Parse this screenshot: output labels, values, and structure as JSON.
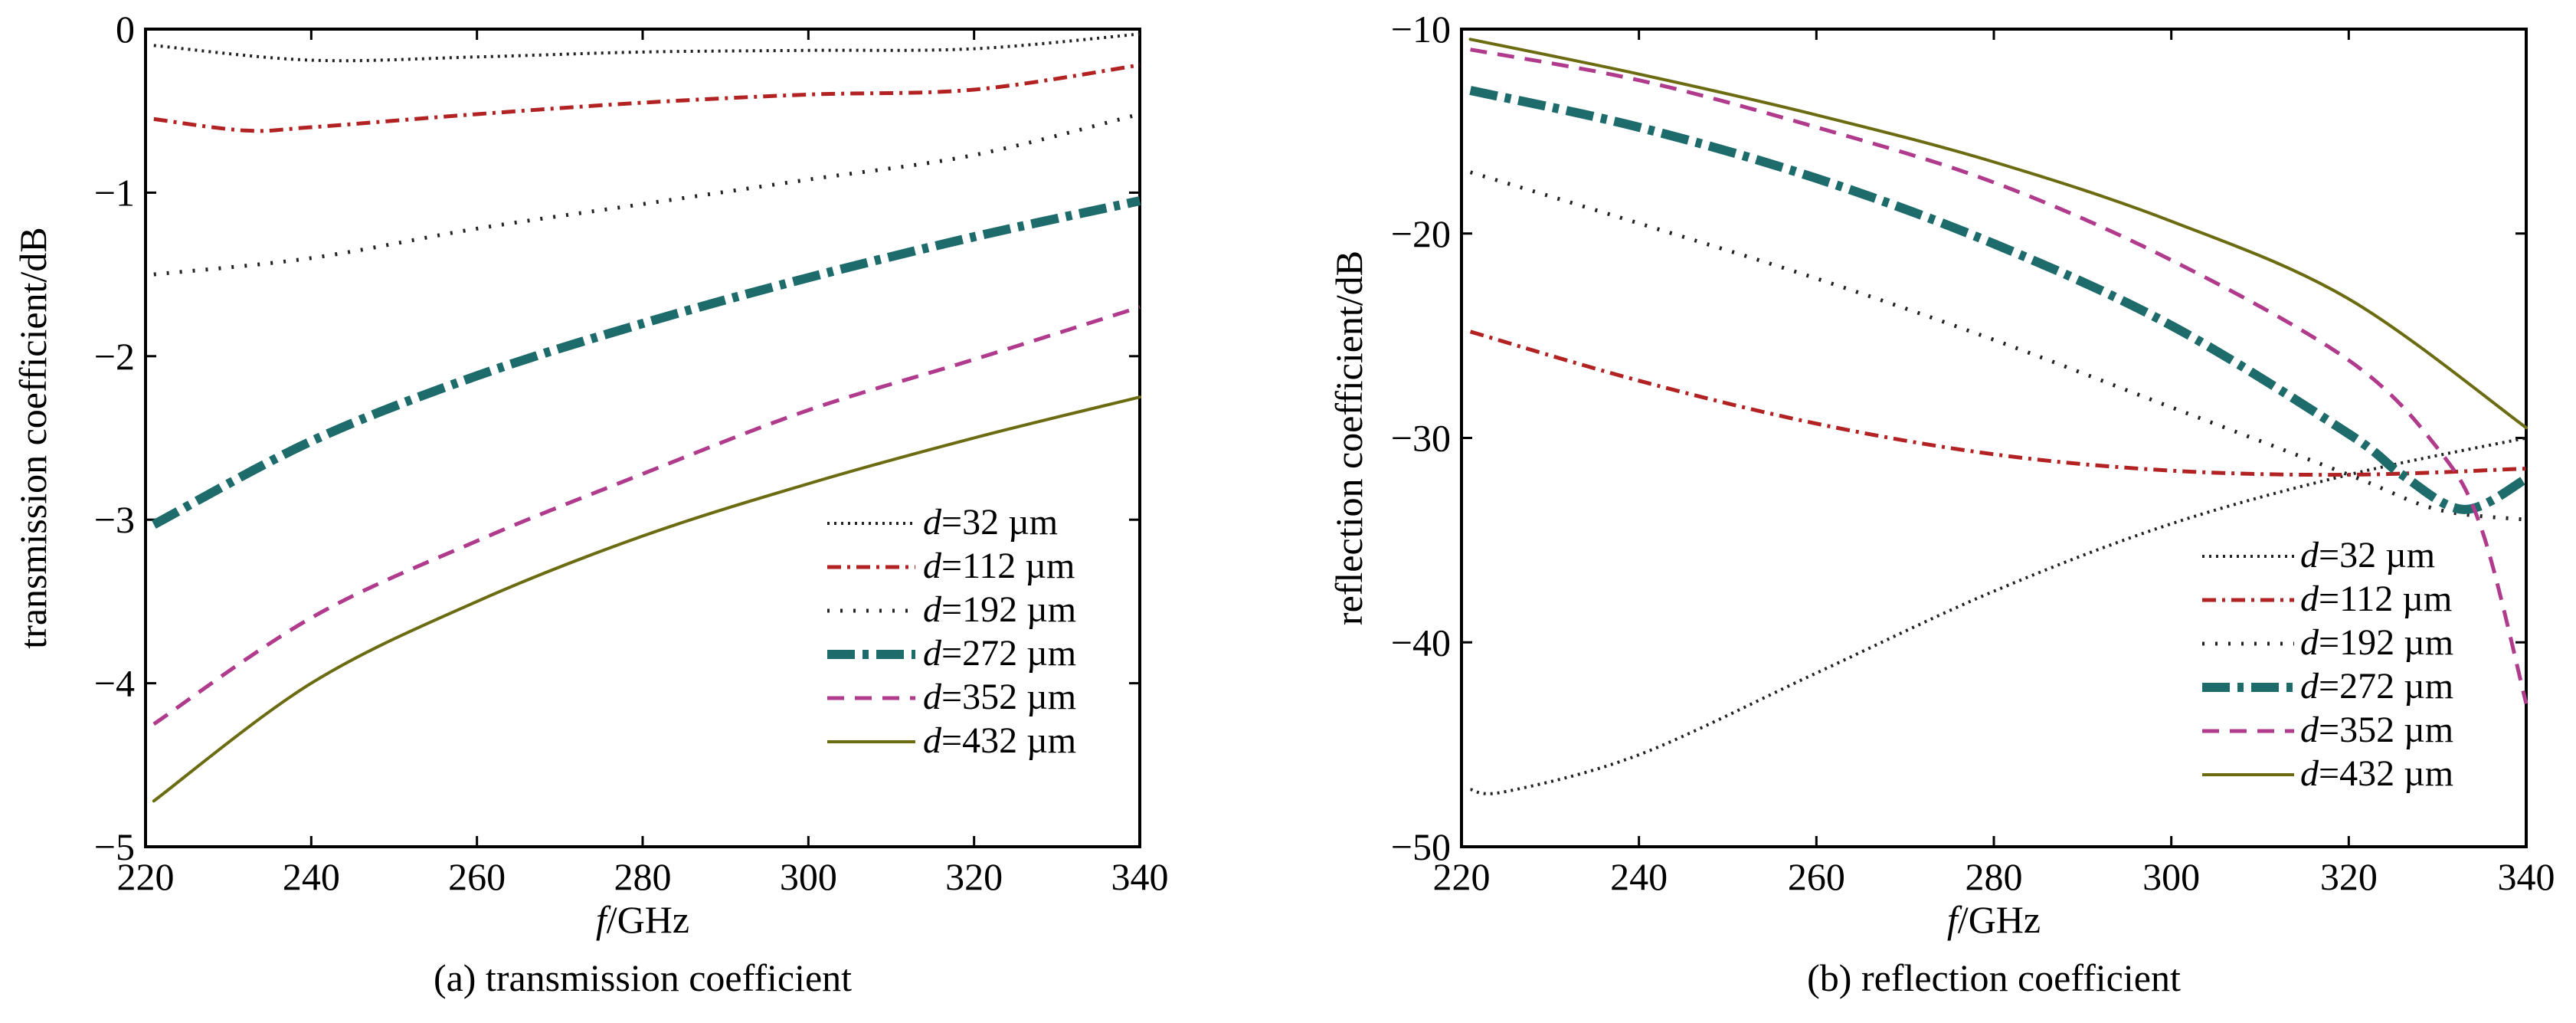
{
  "chart_data": [
    {
      "type": "line",
      "caption": "(a)  transmission coefficient",
      "xlabel_var": "f",
      "xlabel_unit": "/GHz",
      "ylabel": "transmission coefficient/dB",
      "xlim": [
        220,
        340
      ],
      "ylim": [
        -5,
        0
      ],
      "xticks": [
        220,
        240,
        260,
        280,
        300,
        320,
        340
      ],
      "yticks": [
        0,
        -1,
        -2,
        -3,
        -4,
        -5
      ],
      "ytick_labels": [
        "0",
        "−1",
        "−2",
        "−3",
        "−4",
        "−5"
      ],
      "legend_position": "bottom-right",
      "series": [
        {
          "name_var": "d",
          "name_rest": "=32 µm",
          "style": "dotted-fine",
          "color": "#222222",
          "x": [
            221,
            240,
            260,
            280,
            300,
            320,
            340
          ],
          "y": [
            -0.1,
            -0.19,
            -0.17,
            -0.14,
            -0.13,
            -0.12,
            -0.03
          ]
        },
        {
          "name_var": "d",
          "name_rest": "=112 µm",
          "style": "dashdot",
          "color": "#b22222",
          "x": [
            221,
            232,
            240,
            260,
            280,
            300,
            320,
            340
          ],
          "y": [
            -0.55,
            -0.62,
            -0.6,
            -0.52,
            -0.45,
            -0.4,
            -0.37,
            -0.22
          ]
        },
        {
          "name_var": "d",
          "name_rest": "=192 µm",
          "style": "dotted",
          "color": "#222222",
          "x": [
            221,
            240,
            260,
            280,
            300,
            320,
            340
          ],
          "y": [
            -1.5,
            -1.4,
            -1.22,
            -1.07,
            -0.92,
            -0.77,
            -0.52
          ]
        },
        {
          "name_var": "d",
          "name_rest": "=272 µm",
          "style": "dashdot-thick",
          "color": "#1e6b6b",
          "x": [
            221,
            240,
            260,
            280,
            300,
            320,
            340
          ],
          "y": [
            -3.03,
            -2.52,
            -2.12,
            -1.8,
            -1.52,
            -1.27,
            -1.05
          ]
        },
        {
          "name_var": "d",
          "name_rest": "=352 µm",
          "style": "dashed",
          "color": "#b03a8c",
          "x": [
            221,
            240,
            260,
            280,
            300,
            320,
            340
          ],
          "y": [
            -4.25,
            -3.6,
            -3.13,
            -2.72,
            -2.33,
            -2.02,
            -1.7
          ]
        },
        {
          "name_var": "d",
          "name_rest": "=432 µm",
          "style": "solid",
          "color": "#6b6b12",
          "x": [
            221,
            240,
            260,
            280,
            300,
            320,
            340
          ],
          "y": [
            -4.72,
            -4.0,
            -3.5,
            -3.1,
            -2.78,
            -2.5,
            -2.25
          ]
        }
      ]
    },
    {
      "type": "line",
      "caption": "(b)  reflection coefficient",
      "xlabel_var": "f",
      "xlabel_unit": "/GHz",
      "ylabel": "reflection coefficient/dB",
      "xlim": [
        220,
        340
      ],
      "ylim": [
        -50,
        -10
      ],
      "xticks": [
        220,
        240,
        260,
        280,
        300,
        320,
        340
      ],
      "yticks": [
        -10,
        -20,
        -30,
        -40,
        -50
      ],
      "ytick_labels": [
        "−10",
        "−20",
        "−30",
        "−40",
        "−50"
      ],
      "legend_position": "bottom-right",
      "series": [
        {
          "name_var": "d",
          "name_rest": "=32 µm",
          "style": "dotted-fine",
          "color": "#222222",
          "x": [
            221,
            225,
            240,
            260,
            280,
            300,
            320,
            340
          ],
          "y": [
            -47.2,
            -47.3,
            -45.5,
            -41.5,
            -37.5,
            -34.2,
            -31.8,
            -30
          ]
        },
        {
          "name_var": "d",
          "name_rest": "=112 µm",
          "style": "dashdot",
          "color": "#b22222",
          "x": [
            221,
            240,
            260,
            280,
            300,
            320,
            340
          ],
          "y": [
            -24.8,
            -27.2,
            -29.3,
            -30.8,
            -31.6,
            -31.8,
            -31.5
          ]
        },
        {
          "name_var": "d",
          "name_rest": "=192 µm",
          "style": "dotted",
          "color": "#222222",
          "x": [
            221,
            240,
            260,
            280,
            300,
            320,
            330,
            340
          ],
          "y": [
            -17,
            -19.5,
            -22.2,
            -25.2,
            -28.5,
            -31.8,
            -33.5,
            -34
          ]
        },
        {
          "name_var": "d",
          "name_rest": "=272 µm",
          "style": "dashdot-thick",
          "color": "#1e6b6b",
          "x": [
            221,
            240,
            260,
            280,
            300,
            320,
            326,
            333,
            340
          ],
          "y": [
            -13,
            -14.8,
            -17.3,
            -20.5,
            -24.5,
            -29.8,
            -31.8,
            -33.5,
            -32
          ]
        },
        {
          "name_var": "d",
          "name_rest": "=352 µm",
          "style": "dashed",
          "color": "#b03a8c",
          "x": [
            221,
            240,
            260,
            280,
            300,
            320,
            330,
            335,
            340
          ],
          "y": [
            -11,
            -12.5,
            -14.8,
            -17.5,
            -21.3,
            -26.2,
            -30.5,
            -34.5,
            -43
          ]
        },
        {
          "name_var": "d",
          "name_rest": "=432 µm",
          "style": "solid",
          "color": "#6b6b12",
          "x": [
            221,
            240,
            260,
            280,
            300,
            320,
            340
          ],
          "y": [
            -10.5,
            -12.2,
            -14.2,
            -16.5,
            -19.4,
            -23.2,
            -29.5
          ]
        }
      ]
    }
  ]
}
